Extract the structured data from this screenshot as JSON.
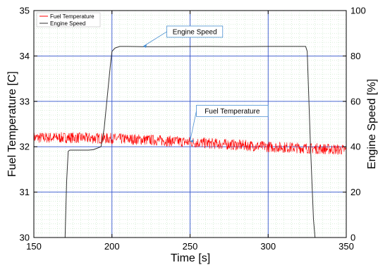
{
  "chart_data": {
    "type": "line",
    "xlabel": "Time [s]",
    "ylabel_left": "Fuel Temperature [C]",
    "ylabel_right": "Engine Speed [%]",
    "xlim": [
      150,
      350
    ],
    "ylim_left": [
      30,
      35
    ],
    "ylim_right": [
      0,
      100
    ],
    "x_ticks": [
      "150",
      "200",
      "250",
      "300",
      "350"
    ],
    "y_left_ticks": [
      "30",
      "31",
      "32",
      "33",
      "34",
      "35"
    ],
    "y_right_ticks": [
      "0",
      "20",
      "40",
      "60",
      "80",
      "100"
    ],
    "grid": true,
    "legend_position": "top-left",
    "series": [
      {
        "name": "Fuel Temperature",
        "axis": "left",
        "color": "#ff0000",
        "style": "noisy",
        "noise_amplitude": 0.12,
        "x": [
          150,
          175,
          200,
          225,
          250,
          275,
          300,
          325,
          350
        ],
        "y": [
          32.2,
          32.2,
          32.18,
          32.15,
          32.1,
          32.05,
          32.0,
          31.97,
          31.93
        ]
      },
      {
        "name": "Engine Speed",
        "axis": "right",
        "color": "#333333",
        "style": "line",
        "x": [
          170,
          171,
          172,
          173,
          175,
          180,
          185,
          188,
          190,
          193,
          195,
          197,
          199,
          200,
          202,
          205,
          210,
          220,
          240,
          260,
          280,
          300,
          320,
          324,
          325,
          326,
          327,
          328,
          329,
          330
        ],
        "y": [
          0,
          25,
          38,
          38.5,
          38.5,
          38.5,
          38.5,
          38.7,
          39.2,
          40,
          48,
          62,
          76,
          82,
          83.5,
          84.2,
          84.2,
          84.1,
          84.1,
          84.2,
          84.1,
          84.2,
          84.2,
          84.2,
          82,
          62,
          42,
          25,
          8,
          0
        ]
      }
    ],
    "annotations": [
      {
        "text": "Engine Speed",
        "target_axis": "right",
        "x": 220,
        "y": 84.2,
        "label_x": 253,
        "label_y": 90.7
      },
      {
        "text": "Fuel Temperature",
        "target_axis": "left",
        "x": 250,
        "y": 32.12,
        "label_x": 277,
        "label_y": 32.79
      }
    ]
  }
}
